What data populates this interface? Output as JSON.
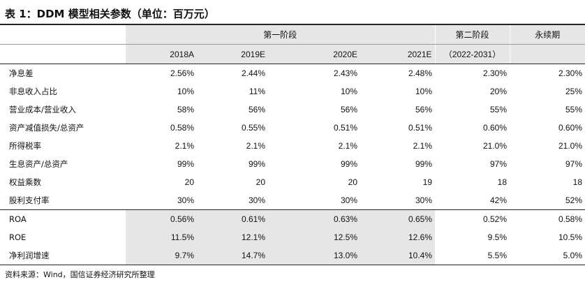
{
  "title": "表 1：DDM 模型相关参数（单位：百万元）",
  "header": {
    "stage1": "第一阶段",
    "stage2": "第二阶段",
    "stage3": "永续期",
    "years": [
      "2018A",
      "2019E",
      "2020E",
      "2021E"
    ],
    "stage2_period": "（2022-2031）"
  },
  "rows": [
    {
      "label": "净息差",
      "values": [
        "2.56%",
        "2.44%",
        "2.43%",
        "2.48%",
        "2.30%",
        "2.30%"
      ]
    },
    {
      "label": "非息收入占比",
      "values": [
        "10%",
        "11%",
        "10%",
        "10%",
        "20%",
        "25%"
      ]
    },
    {
      "label": "营业成本/营业收入",
      "values": [
        "58%",
        "56%",
        "56%",
        "56%",
        "55%",
        "55%"
      ]
    },
    {
      "label": "资产减值损失/总资产",
      "values": [
        "0.58%",
        "0.55%",
        "0.51%",
        "0.51%",
        "0.60%",
        "0.60%"
      ]
    },
    {
      "label": "所得税率",
      "values": [
        "2.1%",
        "2.1%",
        "2.1%",
        "2.1%",
        "21.0%",
        "21.0%"
      ]
    },
    {
      "label": "生息资产/总资产",
      "values": [
        "99%",
        "99%",
        "99%",
        "99%",
        "97%",
        "97%"
      ]
    },
    {
      "label": "权益乘数",
      "values": [
        "20",
        "20",
        "20",
        "19",
        "18",
        "18"
      ]
    },
    {
      "label": "股利支付率",
      "values": [
        "30%",
        "30%",
        "30%",
        "30%",
        "42%",
        "52%"
      ]
    },
    {
      "label": "ROA",
      "values": [
        "0.56%",
        "0.61%",
        "0.63%",
        "0.65%",
        "0.52%",
        "0.58%"
      ]
    },
    {
      "label": "ROE",
      "values": [
        "11.5%",
        "12.1%",
        "12.5%",
        "12.6%",
        "9.5%",
        "10.5%"
      ]
    },
    {
      "label": "净利润增速",
      "values": [
        "9.7%",
        "14.7%",
        "13.0%",
        "10.4%",
        "5.5%",
        "5.0%"
      ]
    }
  ],
  "source": "资料来源：Wind，国信证券经济研究所整理"
}
